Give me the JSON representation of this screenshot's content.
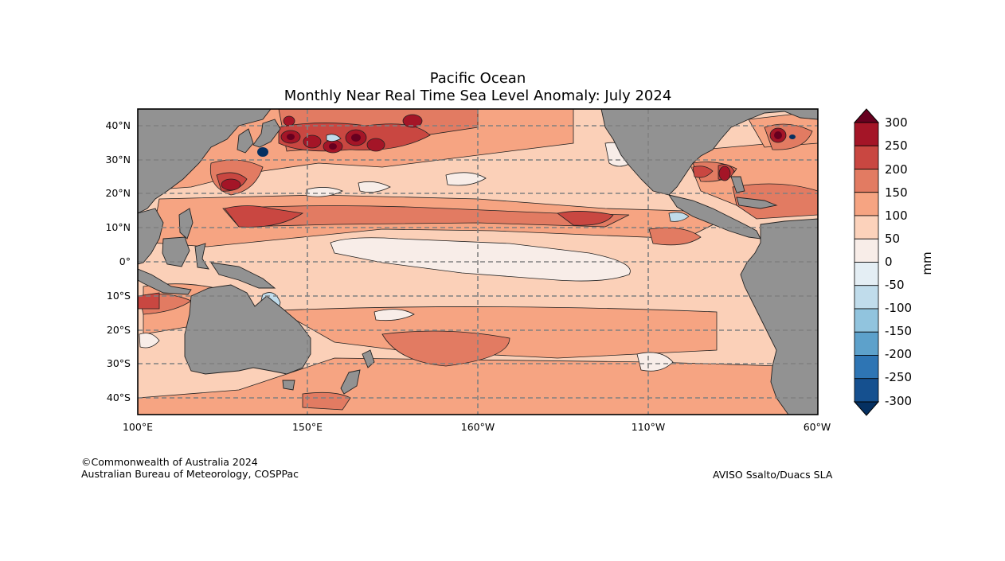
{
  "title": {
    "line1": "Pacific Ocean",
    "line2": "Monthly Near Real Time Sea Level Anomaly: July 2024"
  },
  "map": {
    "region": "Pacific Ocean",
    "lat_labels": [
      "40°N",
      "30°N",
      "20°N",
      "10°N",
      "0°",
      "10°S",
      "20°S",
      "30°S",
      "40°S"
    ],
    "lon_labels": [
      "100°E",
      "150°E",
      "160°W",
      "110°W",
      "60°W"
    ],
    "extent": {
      "lon_range": [
        100,
        300
      ],
      "lat_range": [
        -45,
        45
      ]
    },
    "colors": {
      "land": "#929292",
      "grid": "#808080",
      "ocean_base": "#fbd0b8"
    }
  },
  "colorbar": {
    "unit": "mm",
    "ticks": [
      "300",
      "250",
      "200",
      "150",
      "100",
      "50",
      "0",
      "-50",
      "-100",
      "-150",
      "-200",
      "-250",
      "-300"
    ],
    "colors_top_to_bottom": [
      "#67001f",
      "#a41527",
      "#c94741",
      "#e27b62",
      "#f6a482",
      "#fcd2bb",
      "#f8ede8",
      "#e4eef4",
      "#c0dceb",
      "#91c4de",
      "#5da1cb",
      "#2e75b4",
      "#15508f",
      "#053061"
    ]
  },
  "credits": {
    "left_line1": "©Commonwealth of Australia 2024",
    "left_line2": "Australian Bureau of Meteorology, COSPPac",
    "right": "AVISO Ssalto/Duacs SLA"
  }
}
